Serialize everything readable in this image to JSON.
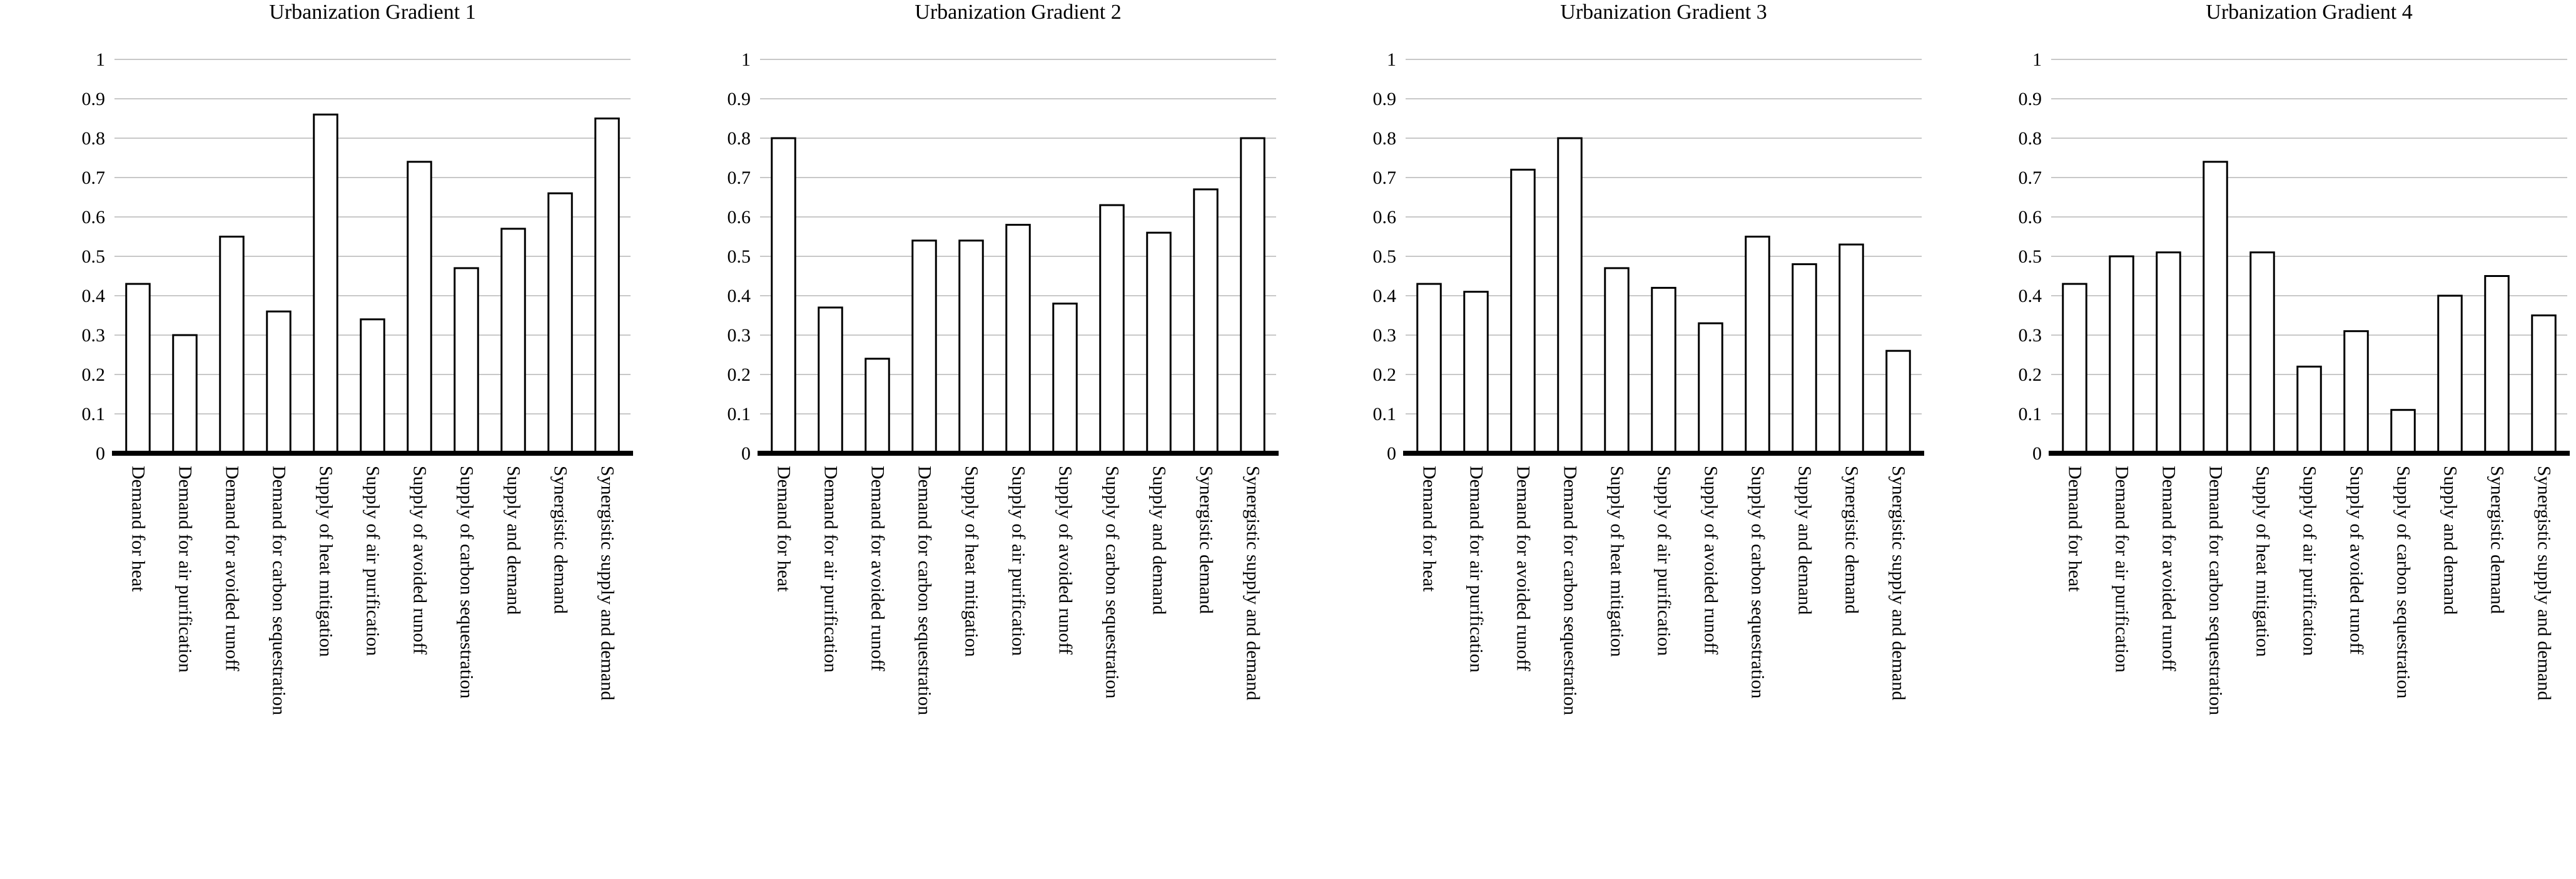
{
  "chart_data": [
    {
      "type": "bar",
      "title": "Urbanization Gradient 1",
      "categories": [
        "Demand for heat",
        "Demand for air purification",
        "Demand for avoided runoff",
        "Demand for carbon sequestration",
        "Supply of heat mitigation",
        "Supply of air purification",
        "Supply of avoided runoff",
        "Supply of carbon sequestration",
        "Supply and demand",
        "Synergistic demand",
        "Synergistic supply and demand"
      ],
      "values": [
        0.43,
        0.3,
        0.55,
        0.36,
        0.86,
        0.34,
        0.74,
        0.47,
        0.57,
        0.66,
        0.85
      ],
      "xlabel": "",
      "ylabel": "",
      "ylim": [
        0,
        1
      ],
      "yticks": [
        0,
        0.1,
        0.2,
        0.3,
        0.4,
        0.5,
        0.6,
        0.7,
        0.8,
        0.9,
        1
      ]
    },
    {
      "type": "bar",
      "title": "Urbanization Gradient 2",
      "categories": [
        "Demand for heat",
        "Demand for air purification",
        "Demand for avoided runoff",
        "Demand for carbon sequestration",
        "Supply of heat mitigation",
        "Supply of air purification",
        "Supply of avoided runoff",
        "Supply of carbon sequestration",
        "Supply and demand",
        "Synergistic demand",
        "Synergistic supply and demand"
      ],
      "values": [
        0.8,
        0.37,
        0.24,
        0.54,
        0.54,
        0.58,
        0.38,
        0.63,
        0.56,
        0.67,
        0.8
      ],
      "xlabel": "",
      "ylabel": "",
      "ylim": [
        0,
        1
      ],
      "yticks": [
        0,
        0.1,
        0.2,
        0.3,
        0.4,
        0.5,
        0.6,
        0.7,
        0.8,
        0.9,
        1
      ]
    },
    {
      "type": "bar",
      "title": "Urbanization Gradient 3",
      "categories": [
        "Demand for heat",
        "Demand for air purification",
        "Demand for avoided runoff",
        "Demand for carbon sequestration",
        "Supply of heat mitigation",
        "Supply of air purification",
        "Supply of avoided runoff",
        "Supply of carbon sequestration",
        "Supply and demand",
        "Synergistic demand",
        "Synergistic supply and demand"
      ],
      "values": [
        0.43,
        0.41,
        0.72,
        0.8,
        0.47,
        0.42,
        0.33,
        0.55,
        0.48,
        0.53,
        0.26
      ],
      "xlabel": "",
      "ylabel": "",
      "ylim": [
        0,
        1
      ],
      "yticks": [
        0,
        0.1,
        0.2,
        0.3,
        0.4,
        0.5,
        0.6,
        0.7,
        0.8,
        0.9,
        1
      ]
    },
    {
      "type": "bar",
      "title": "Urbanization Gradient 4",
      "categories": [
        "Demand for heat",
        "Demand for air purification",
        "Demand for avoided runoff",
        "Demand for carbon sequestration",
        "Supply of heat mitigation",
        "Supply of air purification",
        "Supply of avoided runoff",
        "Supply of carbon sequestration",
        "Supply and demand",
        "Synergistic demand",
        "Synergistic supply and demand"
      ],
      "values": [
        0.43,
        0.5,
        0.51,
        0.74,
        0.51,
        0.22,
        0.31,
        0.11,
        0.4,
        0.45,
        0.35
      ],
      "xlabel": "",
      "ylabel": "",
      "ylim": [
        0,
        1
      ],
      "yticks": [
        0,
        0.1,
        0.2,
        0.3,
        0.4,
        0.5,
        0.6,
        0.7,
        0.8,
        0.9,
        1
      ]
    }
  ]
}
